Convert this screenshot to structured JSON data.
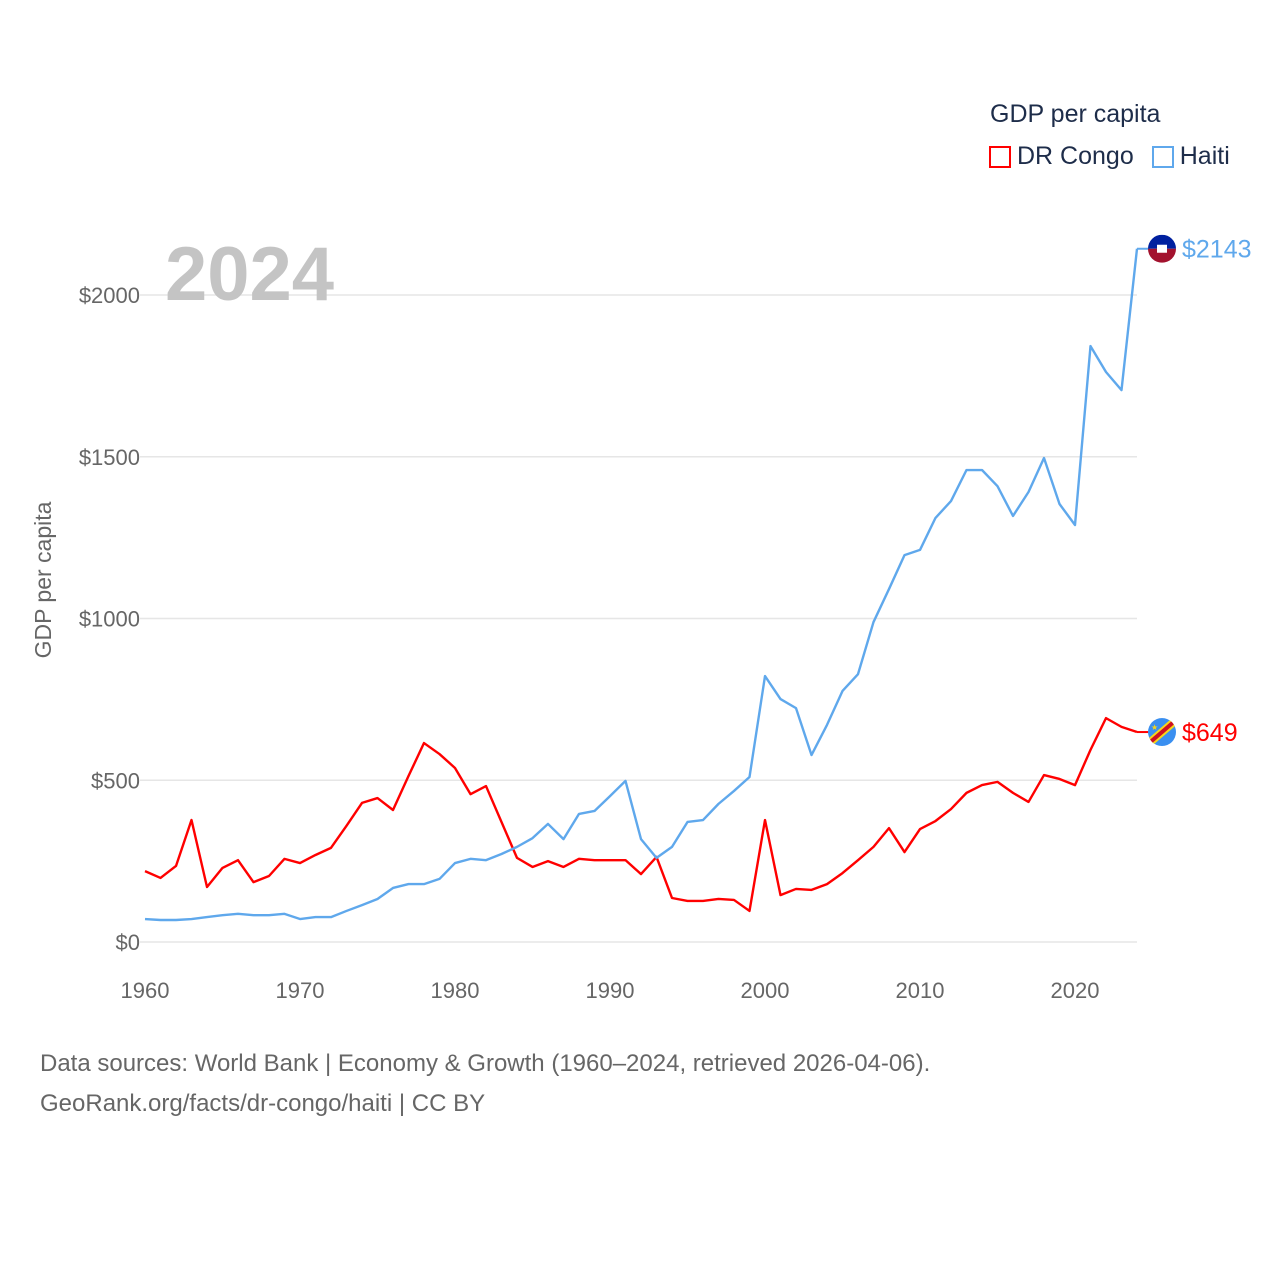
{
  "chart_data": {
    "type": "line",
    "title": "GDP per capita",
    "ylabel": "GDP per capita",
    "xlabel": "",
    "year_label": "2024",
    "xlim": [
      1960,
      2024
    ],
    "ylim": [
      0,
      2000
    ],
    "x_ticks": [
      "1960",
      "1970",
      "1980",
      "1990",
      "2000",
      "2010",
      "2020"
    ],
    "y_ticks": [
      {
        "v": 0,
        "label": "$0"
      },
      {
        "v": 500,
        "label": "$500"
      },
      {
        "v": 1000,
        "label": "$1000"
      },
      {
        "v": 1500,
        "label": "$1500"
      },
      {
        "v": 2000,
        "label": "$2000"
      }
    ],
    "grid": true,
    "legend_position": "top-right",
    "x": [
      1960,
      1961,
      1962,
      1963,
      1964,
      1965,
      1966,
      1967,
      1968,
      1969,
      1970,
      1971,
      1972,
      1973,
      1974,
      1975,
      1976,
      1977,
      1978,
      1979,
      1980,
      1981,
      1982,
      1983,
      1984,
      1985,
      1986,
      1987,
      1988,
      1989,
      1990,
      1991,
      1992,
      1993,
      1994,
      1995,
      1996,
      1997,
      1998,
      1999,
      2000,
      2001,
      2002,
      2003,
      2004,
      2005,
      2006,
      2007,
      2008,
      2009,
      2010,
      2011,
      2012,
      2013,
      2014,
      2015,
      2016,
      2017,
      2018,
      2019,
      2020,
      2021,
      2022,
      2023,
      2024
    ],
    "series": [
      {
        "name": "DR Congo",
        "color": "#ff0000",
        "end_label": "$649",
        "values": [
          219,
          198,
          235,
          377,
          170,
          229,
          253,
          185,
          204,
          257,
          244,
          269,
          291,
          359,
          430,
          445,
          408,
          513,
          615,
          581,
          538,
          457,
          482,
          371,
          260,
          232,
          250,
          232,
          257,
          253,
          253,
          253,
          210,
          263,
          136,
          127,
          127,
          133,
          130,
          96,
          377,
          145,
          164,
          161,
          179,
          213,
          253,
          294,
          352,
          278,
          349,
          374,
          411,
          461,
          485,
          495,
          461,
          433,
          516,
          504,
          485,
          594,
          692,
          665,
          649
        ]
      },
      {
        "name": "Haiti",
        "color": "#5fa8ec",
        "end_label": "$2143",
        "values": [
          71,
          68,
          68,
          71,
          77,
          83,
          87,
          83,
          83,
          87,
          71,
          77,
          77,
          96,
          114,
          133,
          167,
          179,
          179,
          195,
          244,
          257,
          253,
          272,
          294,
          321,
          365,
          318,
          396,
          405,
          451,
          498,
          318,
          260,
          294,
          371,
          377,
          427,
          467,
          510,
          822,
          751,
          723,
          578,
          671,
          776,
          828,
          989,
          1091,
          1196,
          1212,
          1311,
          1363,
          1459,
          1459,
          1409,
          1317,
          1391,
          1496,
          1354,
          1289,
          1842,
          1762,
          1706,
          2143
        ]
      }
    ]
  },
  "footer": {
    "line1": "Data sources: World Bank | Economy & Growth (1960–2024, retrieved 2026-04-06).",
    "line2": "GeoRank.org/facts/dr-congo/haiti | CC BY"
  }
}
